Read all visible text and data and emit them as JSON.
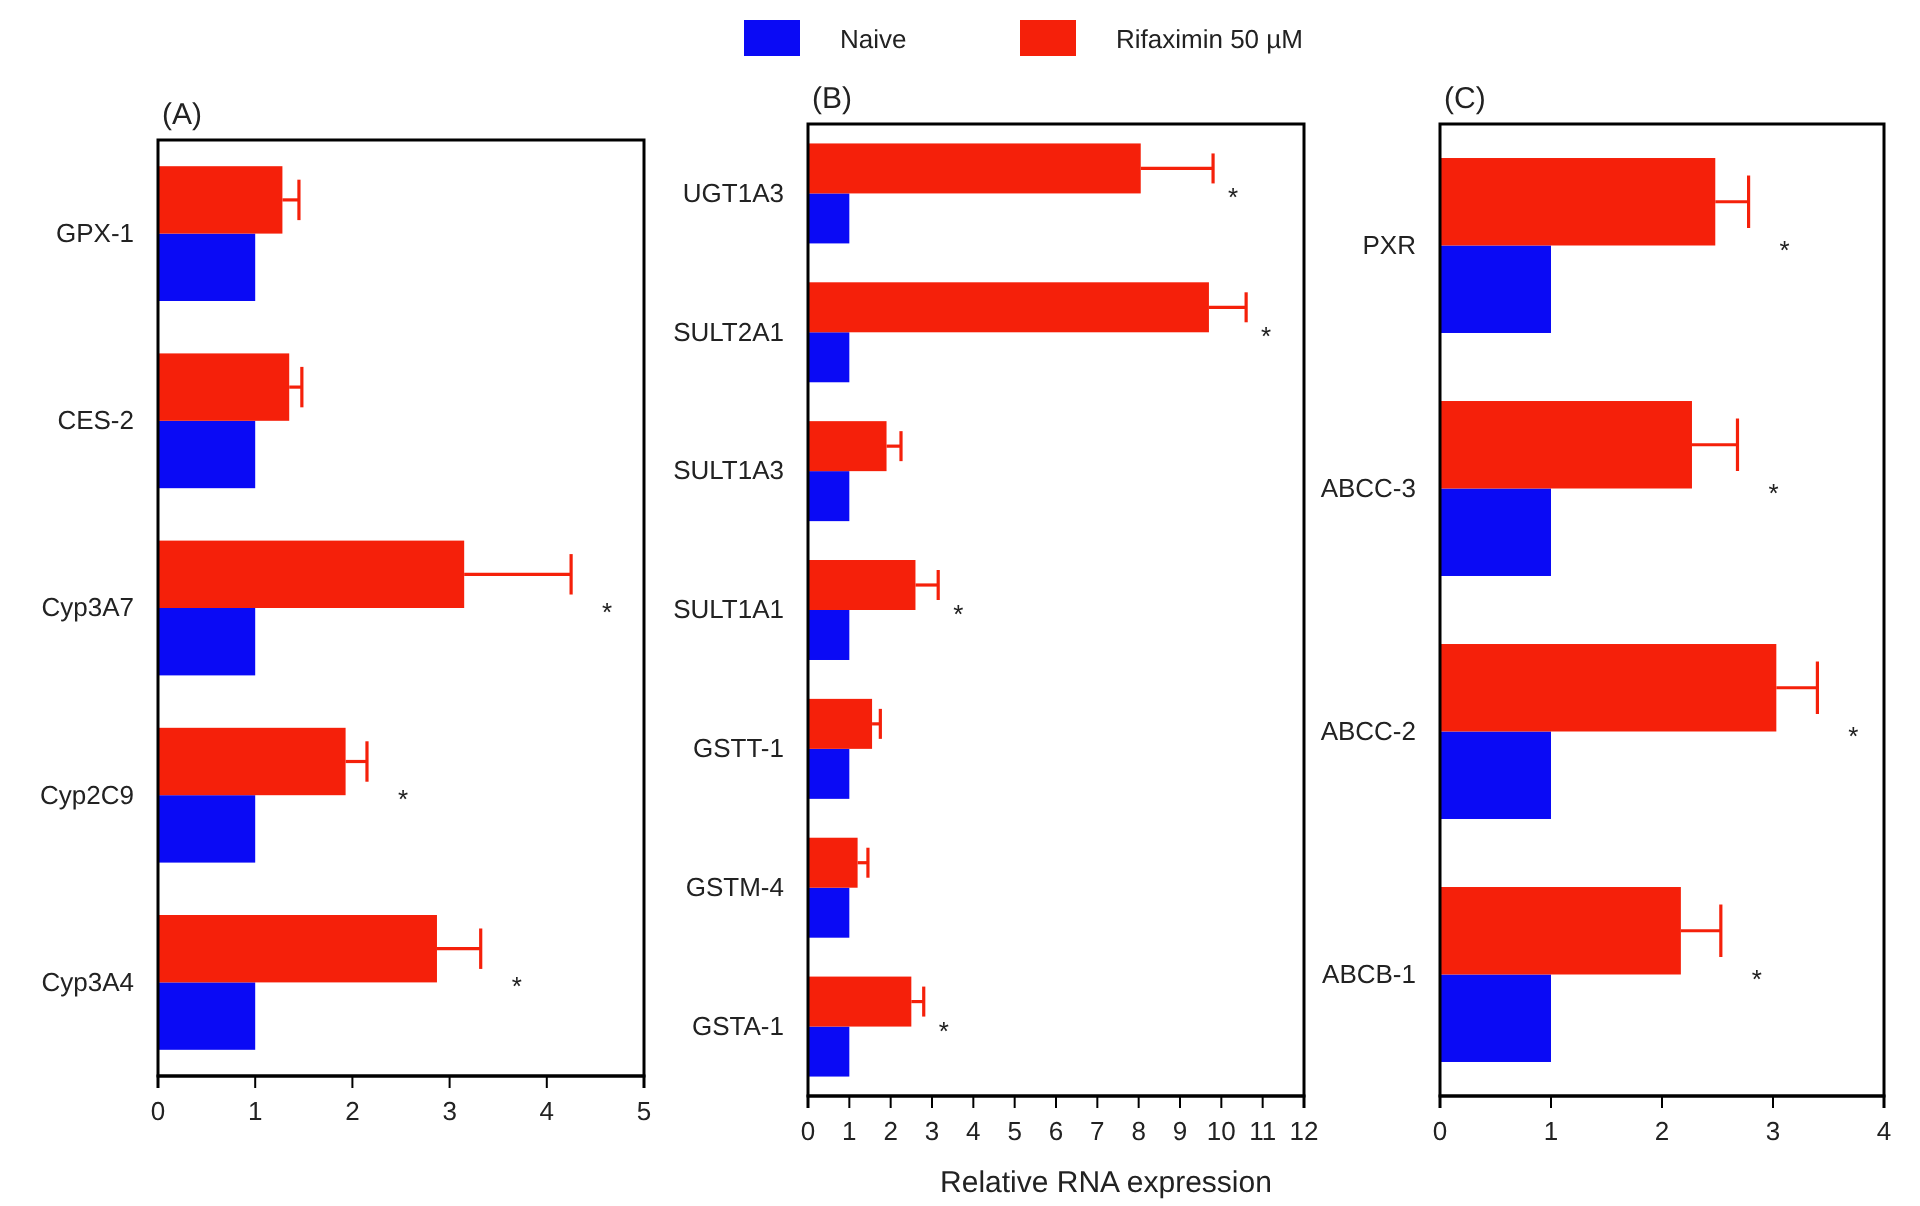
{
  "chart_data": [
    {
      "type": "bar",
      "orientation": "horizontal",
      "title": "(A)",
      "legend": "top",
      "categories": [
        "GPX-1",
        "CES-2",
        "Cyp3A7",
        "Cyp2C9",
        "Cyp3A4"
      ],
      "xlim": [
        0,
        5
      ],
      "xticks": [
        0,
        1,
        2,
        3,
        4,
        5
      ],
      "series": [
        {
          "name": "Naive",
          "color": "#0a0af5",
          "values": [
            1,
            1,
            1,
            1,
            1
          ]
        },
        {
          "name": "Rifaximin 50 µM",
          "color": "#f5200a",
          "values": [
            1.28,
            1.35,
            3.15,
            1.93,
            2.87
          ],
          "errors": [
            [
              1.28,
              1.45
            ],
            [
              1.35,
              1.48
            ],
            [
              3.15,
              4.25
            ],
            [
              1.93,
              2.15
            ],
            [
              2.87,
              3.32
            ]
          ]
        }
      ],
      "annotations": [
        "*",
        "*",
        "*"
      ]
    },
    {
      "type": "bar",
      "orientation": "horizontal",
      "title": "(B)",
      "xlabel": "Relative RNA expression",
      "categories": [
        "UGT1A3",
        "SULT2A1",
        "SULT1A3",
        "SULT1A1",
        "GSTT-1",
        "GSTM-4",
        "GSTA-1"
      ],
      "xlim": [
        0,
        12
      ],
      "xticks": [
        0,
        1,
        2,
        3,
        4,
        5,
        6,
        7,
        8,
        9,
        10,
        11,
        12
      ],
      "series": [
        {
          "color": "#0a0af5",
          "values": [
            1,
            1,
            1,
            1,
            1,
            1,
            1
          ]
        },
        {
          "color": "#f5200a",
          "values": [
            8.05,
            9.7,
            1.9,
            2.6,
            1.55,
            1.2,
            2.5
          ],
          "errors": [
            [
              8.05,
              9.8
            ],
            [
              9.7,
              10.6
            ],
            [
              1.9,
              2.25
            ],
            [
              2.6,
              3.15
            ],
            [
              1.55,
              1.75
            ],
            [
              1.2,
              1.45
            ],
            [
              2.5,
              2.8
            ]
          ]
        }
      ],
      "annotations": [
        {
          "text": "*",
          "x": 9.8,
          "y": "UGT1A3"
        },
        {
          "text": "*",
          "x": 10.6,
          "y": "SULT2A1"
        },
        {
          "text": "*",
          "x": 3.15,
          "y": "SULT1A1"
        },
        {
          "text": "*",
          "x": 2.8,
          "y": "GSTA-1"
        }
      ]
    },
    {
      "type": "bar",
      "orientation": "horizontal",
      "title": "(C)",
      "categories": [
        "PXR",
        "ABCC-3",
        "ABCC-2",
        "ABCB-1"
      ],
      "xlim": [
        0,
        4
      ],
      "xticks": [
        0,
        1,
        2,
        3,
        4
      ],
      "series": [
        {
          "color": "#0a0af5",
          "values": [
            1,
            1,
            1,
            1
          ]
        },
        {
          "color": "#f5200a",
          "values": [
            2.48,
            2.27,
            3.03,
            2.17
          ],
          "errors": [
            [
              2.48,
              2.78
            ],
            [
              2.27,
              2.68
            ],
            [
              3.03,
              3.4
            ],
            [
              2.17,
              2.53
            ]
          ]
        }
      ],
      "annotations": [
        "*",
        "*",
        "*",
        "*"
      ]
    }
  ]
}
